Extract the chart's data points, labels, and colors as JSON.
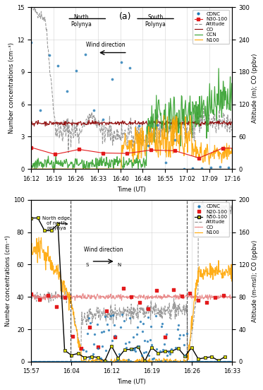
{
  "panel_a": {
    "title": "(a)",
    "xlabel": "Time (UT)",
    "ylabel_left": "Number concentrations (cm⁻³)",
    "ylabel_right": "Altitude (m); CO (ppbv)",
    "ylim_left": [
      0,
      15
    ],
    "ylim_right": [
      0,
      300
    ],
    "yticks_left": [
      0,
      3,
      6,
      9,
      12,
      15
    ],
    "yticks_right": [
      0,
      60,
      120,
      180,
      240,
      300
    ],
    "xtick_labels": [
      "16:12",
      "16:19",
      "16:26",
      "16:33",
      "16:40",
      "16:48",
      "16:55",
      "17:02",
      "17:09",
      "17:16"
    ],
    "colors": {
      "CDNC": "#1f78b4",
      "N30100": "#e31a1c",
      "Altitude": "#888888",
      "CO": "#8b0000",
      "CCN": "#33a02c",
      "N100": "#ffa500"
    }
  },
  "panel_b": {
    "xlabel": "Time (UT)",
    "ylabel_left": "Number concentrations (cm⁻³)",
    "ylabel_right": "Altitude (m-msl); CO (ppbv)",
    "ylim_left": [
      0,
      100
    ],
    "ylim_right": [
      0,
      200
    ],
    "yticks_left": [
      0,
      20,
      40,
      60,
      80,
      100
    ],
    "yticks_right": [
      0,
      40,
      80,
      120,
      160,
      200
    ],
    "xtick_labels": [
      "15:57",
      "16:04",
      "16:12",
      "16:19",
      "16:26",
      "16:33"
    ],
    "colors": {
      "CDNC": "#1f78b4",
      "N20100": "#e31a1c",
      "N50100": "#808000",
      "Altitude": "#888888",
      "CO": "#e88080",
      "N100": "#ffa500"
    }
  },
  "background_color": "white",
  "grid_color": "#cccccc",
  "fig_width": 3.73,
  "fig_height": 5.52,
  "dpi": 100
}
